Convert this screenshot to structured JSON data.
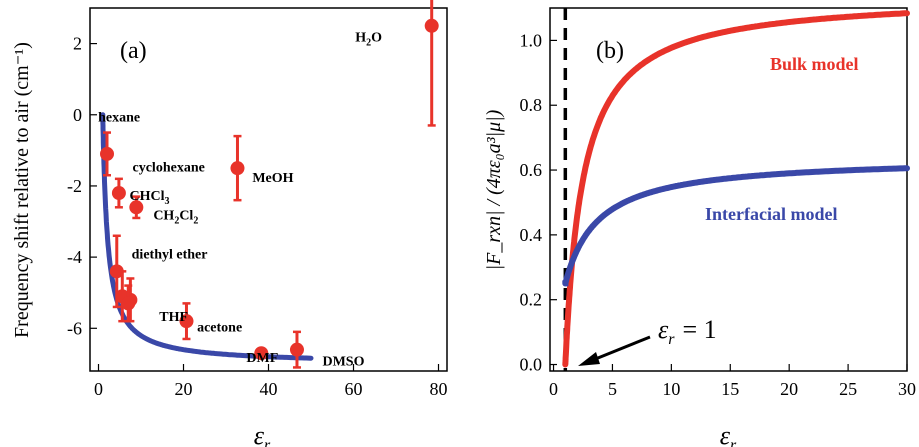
{
  "chart_data": [
    {
      "type": "scatter",
      "panel_label": "(a)",
      "xlabel": "ε_r",
      "ylabel": "Frequency shift relative to air (cm⁻¹)",
      "xlim": [
        -2,
        82
      ],
      "ylim": [
        -7.2,
        3.0
      ],
      "xticks": [
        0,
        20,
        40,
        60,
        80
      ],
      "yticks": [
        2,
        0,
        -2,
        -4,
        -6
      ],
      "marker_color": "#e8332a",
      "fit_color": "#3a48a8",
      "points": [
        {
          "name": "hexane",
          "sub": "",
          "after": "",
          "x": 1.9,
          "y": -0.1,
          "err": 0.0,
          "show_marker": false
        },
        {
          "name": "cyclohexane",
          "sub": "",
          "after": "",
          "x": 2.0,
          "y": -1.1,
          "err": 0.6,
          "show_marker": true
        },
        {
          "name": "CHCl",
          "sub": "3",
          "after": "",
          "x": 4.8,
          "y": -2.2,
          "err": 0.4,
          "show_marker": true
        },
        {
          "name": "CH",
          "sub": "2",
          "after": "Cl",
          "sub2": "2",
          "x": 8.9,
          "y": -2.6,
          "err": 0.3,
          "show_marker": true
        },
        {
          "name": "diethyl ether",
          "sub": "",
          "after": "",
          "x": 4.3,
          "y": -4.4,
          "err": 1.0,
          "show_marker": true
        },
        {
          "name": "THF",
          "sub": "",
          "after": "",
          "x": 7.5,
          "y": -5.2,
          "err": 0.6,
          "show_marker": true
        },
        {
          "name": "acetone",
          "sub": "",
          "after": "",
          "x": 20.7,
          "y": -5.8,
          "err": 0.5,
          "show_marker": true
        },
        {
          "name": "DMF",
          "sub": "",
          "after": "",
          "x": 38.3,
          "y": -6.7,
          "err": 0.1,
          "show_marker": true
        },
        {
          "name": "DMSO",
          "sub": "",
          "after": "",
          "x": 46.7,
          "y": -6.6,
          "err": 0.5,
          "show_marker": true
        },
        {
          "name": "MeOH",
          "sub": "",
          "after": "",
          "x": 32.7,
          "y": -1.5,
          "err": 0.9,
          "show_marker": true
        },
        {
          "name": "H",
          "sub": "2",
          "after": "O",
          "x": 78.4,
          "y": 2.5,
          "err": 2.8,
          "show_marker": true
        }
      ],
      "extra_points": [
        {
          "x": 5.6,
          "y": -5.1,
          "err": 0.7
        },
        {
          "x": 7.0,
          "y": -5.3,
          "err": 0.5
        }
      ],
      "fit_curve": {
        "x_start": 1.0,
        "x_end": 50.0,
        "y_at_1": 0.0,
        "y_inf": -7.0,
        "shape": "(eps-1)/(eps+0.15)"
      }
    },
    {
      "type": "line",
      "panel_label": "(b)",
      "xlabel": "ε_r",
      "ylabel": "|F_rxn| / (4πε₀a³|μ|)",
      "xlim": [
        -0.3,
        30
      ],
      "ylim": [
        -0.02,
        1.1
      ],
      "xticks": [
        0,
        5,
        10,
        15,
        20,
        25,
        30
      ],
      "yticks": [
        0.0,
        0.2,
        0.4,
        0.6,
        0.8,
        1.0
      ],
      "series": [
        {
          "name": "Bulk model",
          "color": "#e8332a",
          "formula": "1.14*(eps-1)/(eps+0.5)",
          "x_start": 1.0,
          "x_end": 30
        },
        {
          "name": "Interfacial model",
          "color": "#3a48a8",
          "formula": "0.25+0.39*(eps-1)/(eps+1.8)",
          "x_start": 1.0,
          "x_end": 30
        }
      ],
      "vline": {
        "x": 1.0,
        "style": "dashed"
      },
      "annotation": {
        "text": "ε_r = 1",
        "eq": "= 1",
        "x": 1.0,
        "y": 0.01
      }
    }
  ]
}
